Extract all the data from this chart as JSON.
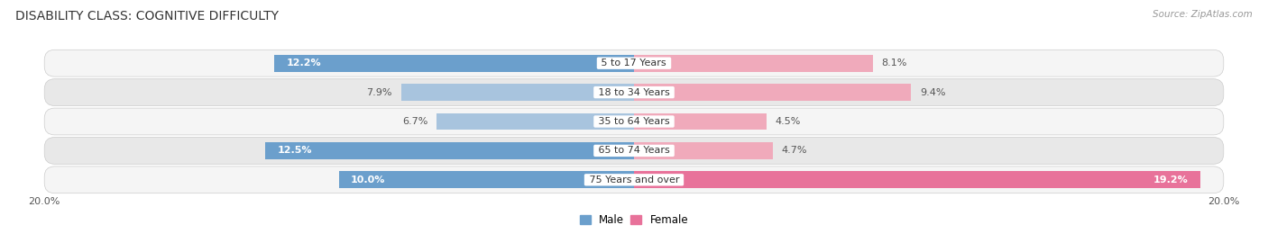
{
  "title": "DISABILITY CLASS: COGNITIVE DIFFICULTY",
  "source": "Source: ZipAtlas.com",
  "categories": [
    "5 to 17 Years",
    "18 to 34 Years",
    "35 to 64 Years",
    "65 to 74 Years",
    "75 Years and over"
  ],
  "male_values": [
    12.2,
    7.9,
    6.7,
    12.5,
    10.0
  ],
  "female_values": [
    8.1,
    9.4,
    4.5,
    4.7,
    19.2
  ],
  "male_color_dark": "#6B9FCC",
  "male_color_light": "#A8C4DE",
  "female_color_dark": "#E8729A",
  "female_color_light": "#F0AABB",
  "max_value": 20.0,
  "title_fontsize": 10,
  "label_fontsize": 8,
  "tick_fontsize": 8,
  "legend_fontsize": 8.5,
  "row_light_bg": "#F5F5F5",
  "row_dark_bg": "#E8E8E8",
  "fig_bg": "#FFFFFF"
}
